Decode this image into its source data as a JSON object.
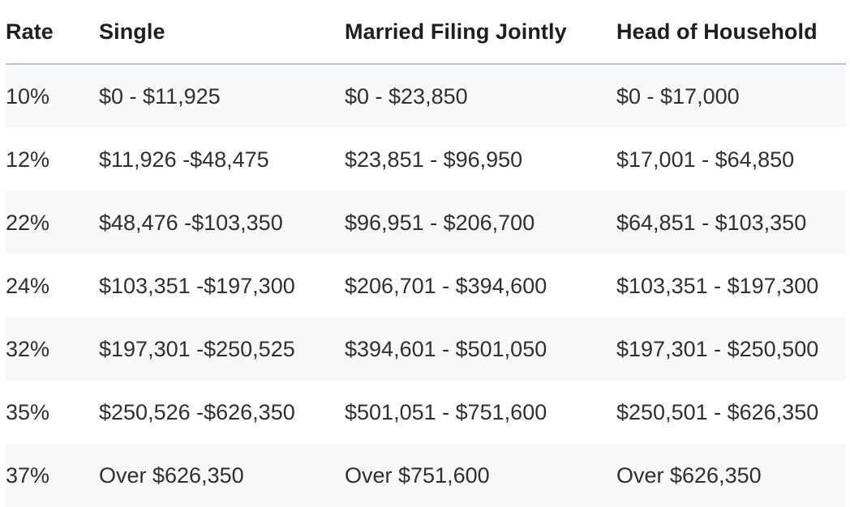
{
  "table": {
    "headers": [
      "Rate",
      "Single",
      "Married Filing Jointly",
      "Head of Household"
    ],
    "rows": [
      [
        "10%",
        "$0 - $11,925",
        "$0 - $23,850",
        "$0 - $17,000"
      ],
      [
        "12%",
        "$11,926 -$48,475",
        "$23,851 - $96,950",
        "$17,001 - $64,850"
      ],
      [
        "22%",
        "$48,476 -$103,350",
        "$96,951 - $206,700",
        "$64,851 - $103,350"
      ],
      [
        "24%",
        "$103,351 -$197,300",
        "$206,701 - $394,600",
        "$103,351 - $197,300"
      ],
      [
        "32%",
        "$197,301 -$250,525",
        "$394,601 - $501,050",
        "$197,301 - $250,500"
      ],
      [
        "35%",
        "$250,526 -$626,350",
        "$501,051 - $751,600",
        "$250,501 - $626,350"
      ],
      [
        "37%",
        "Over $626,350",
        "Over $751,600",
        "Over $626,350"
      ]
    ]
  }
}
